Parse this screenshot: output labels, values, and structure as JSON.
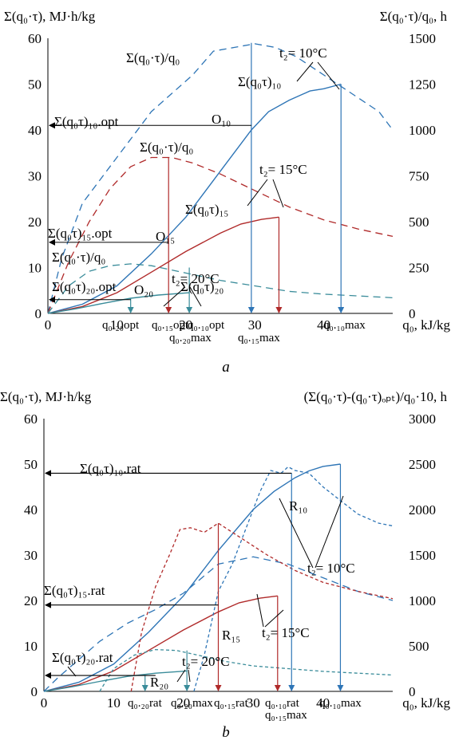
{
  "chart_data": [
    {
      "id": "a",
      "type": "line",
      "caption": "a",
      "left_axis_label": "Σ(q₀·τ), MJ·h/kg",
      "right_axis_label": "Σ(q₀·τ)/q₀, h",
      "xlabel": "q₀, kJ/kg",
      "xlim": [
        0,
        50
      ],
      "ylim_left": [
        0,
        60
      ],
      "ylim_right": [
        0,
        1500
      ],
      "xticks": [
        0,
        10,
        20,
        30,
        40
      ],
      "yticks_left": [
        0,
        10,
        20,
        30,
        40,
        50,
        60
      ],
      "yticks_right": [
        0,
        250,
        500,
        750,
        1000,
        1250,
        1500
      ],
      "grid": false,
      "colors": {
        "t10": "#2e75b6",
        "t15": "#b02a2a",
        "t20": "#3a8c9a"
      },
      "series": [
        {
          "name": "Σ(q₀τ)₁₀",
          "axis": "left",
          "style": "solid",
          "color_key": "t10",
          "x": [
            0,
            5,
            10,
            15,
            20,
            25,
            29.5,
            32,
            35,
            38,
            40,
            42.5
          ],
          "y": [
            0,
            2,
            6,
            13,
            21,
            31,
            40,
            44,
            46.5,
            48.5,
            49,
            50
          ]
        },
        {
          "name": "Σ(q₀τ)₁₅",
          "axis": "left",
          "style": "solid",
          "color_key": "t15",
          "x": [
            0,
            5,
            10,
            15,
            20,
            25,
            28,
            31,
            33.5
          ],
          "y": [
            0,
            1.5,
            4.5,
            9,
            13.5,
            17.5,
            19.5,
            20.5,
            21
          ]
        },
        {
          "name": "Σ(q₀τ)₂₀",
          "axis": "left",
          "style": "solid",
          "color_key": "t20",
          "x": [
            0,
            4,
            8,
            12,
            16,
            20.5
          ],
          "y": [
            0,
            1,
            2.2,
            3.3,
            4,
            4.5
          ]
        },
        {
          "name": "Σ(q₀·τ)/q₀ (t₂=10°C)",
          "axis": "right",
          "style": "dashed",
          "color_key": "t10",
          "x": [
            0,
            2,
            5,
            8,
            10,
            12,
            15,
            18,
            21,
            24,
            27,
            30,
            33,
            36,
            40,
            44,
            48,
            50
          ],
          "y": [
            0,
            300,
            600,
            750,
            850,
            950,
            1100,
            1200,
            1300,
            1430,
            1450,
            1470,
            1450,
            1400,
            1300,
            1200,
            1100,
            1000
          ]
        },
        {
          "name": "Σ(q₀·τ)/q₀ (t₂=15°C)",
          "axis": "right",
          "style": "dashed",
          "color_key": "t15",
          "x": [
            0,
            3,
            6,
            9,
            12,
            15,
            18,
            21,
            25,
            30,
            35,
            40,
            45,
            50
          ],
          "y": [
            0,
            280,
            500,
            680,
            800,
            850,
            850,
            820,
            760,
            670,
            580,
            510,
            460,
            420
          ]
        },
        {
          "name": "Σ(q₀·τ)/q₀ (t₂=20°C)",
          "axis": "right",
          "style": "dashed",
          "color_key": "t20",
          "x": [
            0,
            3,
            6,
            9,
            12,
            15,
            20,
            25,
            30,
            35,
            40,
            45,
            50
          ],
          "y": [
            0,
            150,
            230,
            260,
            270,
            260,
            220,
            180,
            150,
            120,
            105,
            95,
            85
          ]
        }
      ],
      "labels": {
        "sum10": "Σ(q₀τ)₁₀",
        "ratio10": "Σ(q₀·τ)/q₀",
        "t10": "t₂= 10°C",
        "opt10": "Σ(q₀τ)₁₀.opt",
        "O10": "O₁₀",
        "ratio15": "Σ(q₀·τ)/q₀",
        "t15": "t₂= 15°C",
        "sum15": "Σ(q₀τ)₁₅",
        "opt15": "Σ(q₀τ)₁₅.opt",
        "O15": "O₁₅",
        "ratio20": "Σ(q₀·τ)/q₀",
        "t20": "t₂= 20°C",
        "opt20": "Σ(q₀τ)₂₀.opt",
        "O20": "O₂₀",
        "sum20": "Σ(q₀τ)₂₀",
        "q20opt": "q₀.₂₀opt",
        "q15opt": "q₀.₁₅opt",
        "q20max": "q₀.₂₀max",
        "q10opt": "q₀.₁₀opt",
        "q15max": "q₀.₁₅max",
        "q10max": "q₀.₁₀max"
      },
      "markers": {
        "opt10": {
          "x": 29.5,
          "y": 41
        },
        "opt15": {
          "x": 17.5,
          "y": 15.5
        },
        "opt20": {
          "x": 12,
          "y": 3
        },
        "q20opt": 12,
        "q15opt": 17.5,
        "q20max": 20.5,
        "q10opt": 29.5,
        "q15max": 33.5,
        "q10max": 42.5
      }
    },
    {
      "id": "b",
      "type": "line",
      "caption": "b",
      "left_axis_label": "Σ(q₀·τ), MJ·h/kg",
      "right_axis_label": "(Σ(q₀·τ)-(q₀·τ)ₒₚₜ)/q₀·10, h",
      "xlabel": "q₀, kJ/kg",
      "xlim": [
        0,
        50
      ],
      "ylim_left": [
        0,
        60
      ],
      "ylim_right": [
        0,
        3000
      ],
      "xticks": [
        0,
        10,
        20,
        30,
        40
      ],
      "yticks_left": [
        0,
        10,
        20,
        30,
        40,
        50,
        60
      ],
      "yticks_right": [
        0,
        500,
        1000,
        1500,
        2000,
        2500,
        3000
      ],
      "grid": false,
      "colors": {
        "t10": "#2e75b6",
        "t15": "#b02a2a",
        "t20": "#3a8c9a"
      },
      "series": [
        {
          "name": "Σ(q₀τ)₁₀",
          "axis": "left",
          "style": "solid",
          "color_key": "t10",
          "x": [
            0,
            5,
            10,
            15,
            20,
            25,
            30,
            33,
            36,
            38,
            40,
            42.5
          ],
          "y": [
            0,
            2,
            6,
            13,
            21,
            31,
            40,
            44,
            47,
            48.5,
            49.5,
            50
          ]
        },
        {
          "name": "Σ(q₀τ)₁₅",
          "axis": "left",
          "style": "solid",
          "color_key": "t15",
          "x": [
            0,
            5,
            10,
            15,
            20,
            25,
            28,
            31,
            33.5
          ],
          "y": [
            0,
            1.5,
            4.5,
            9,
            13.5,
            17.5,
            19.5,
            20.5,
            21
          ]
        },
        {
          "name": "Σ(q₀τ)₂₀",
          "axis": "left",
          "style": "solid",
          "color_key": "t20",
          "x": [
            0,
            4,
            8,
            12,
            16,
            20.5
          ],
          "y": [
            0,
            1,
            2.2,
            3.3,
            4,
            4.5
          ]
        },
        {
          "name": "Σ(q₀·τ)/q₀ (t₂=10°C)",
          "axis": "right",
          "style": "dashed",
          "color_key": "t10",
          "x": [
            0,
            2,
            5,
            8,
            12,
            16,
            20,
            25,
            30,
            35,
            40,
            45,
            50
          ],
          "y": [
            0,
            150,
            350,
            550,
            750,
            900,
            1080,
            1400,
            1480,
            1400,
            1250,
            1100,
            1000
          ]
        },
        {
          "name": "(Σ(q₀·τ)-(q₀·τ)ₒₚₜ)/q₀·10 (t₂=10°C)",
          "axis": "right",
          "style": "short-dashed",
          "color_key": "t10",
          "x": [
            21.5,
            23,
            25,
            27,
            29,
            31,
            32.5,
            34,
            35,
            36,
            38,
            40,
            42.5,
            45,
            48,
            50
          ],
          "y": [
            0,
            400,
            1100,
            1400,
            1800,
            2200,
            2430,
            2400,
            2470,
            2430,
            2400,
            2250,
            2100,
            1950,
            1850,
            1820
          ]
        },
        {
          "name": "(Σ(q₀·τ)-(q₀·τ)ₒₚₜ)/q₀·10 (t₂=15°C)",
          "axis": "right",
          "style": "short-dashed",
          "color_key": "t15",
          "x": [
            12.5,
            14,
            16,
            18,
            19.5,
            21,
            23,
            25,
            28,
            32,
            36,
            40,
            45,
            50
          ],
          "y": [
            0,
            650,
            1150,
            1500,
            1780,
            1800,
            1750,
            1850,
            1700,
            1500,
            1330,
            1200,
            1100,
            1020
          ]
        },
        {
          "name": "(Σ(q₀·τ)-(q₀·τ)ₒₚₜ)/q₀·10 (t₂=20°C)",
          "axis": "right",
          "style": "short-dashed",
          "color_key": "t20",
          "x": [
            8,
            10,
            13,
            16,
            19,
            22,
            26,
            30,
            35,
            40,
            45,
            50
          ],
          "y": [
            0,
            250,
            400,
            460,
            450,
            400,
            330,
            280,
            250,
            220,
            200,
            180
          ]
        }
      ],
      "labels": {
        "rat10": "Σ(q₀τ)₁₀.rat",
        "R10": "R₁₀",
        "t10": "t₂= 10°C",
        "rat15": "Σ(q₀τ)₁₅.rat",
        "R15": "R₁₅",
        "t15": "t₂= 15°C",
        "rat20": "Σ(q₀τ)₂₀.rat",
        "t20": "t₂= 20°C",
        "R20": "R₂₀",
        "q20rat": "q₀.₂₀rat",
        "q20max": "q₀.₂₀max",
        "q15rat": "q₀.₁₅rat",
        "q15max": "q₀.₁₅max",
        "q10rat": "q₀.₁₀rat",
        "q10max": "q₀.₁₀max"
      },
      "markers": {
        "rat10": {
          "x": 35.5,
          "y": 48
        },
        "rat15": {
          "x": 25,
          "y": 19
        },
        "rat20": {
          "x": 14.5,
          "y": 3.5
        },
        "q20rat": 14.5,
        "q20max": 20.5,
        "q15rat": 25,
        "q15max": 33.5,
        "q10rat": 35.5,
        "q10max": 42.5
      }
    }
  ]
}
